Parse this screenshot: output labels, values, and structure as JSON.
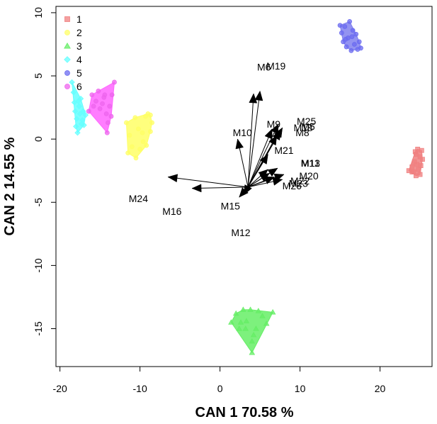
{
  "chart_data": {
    "type": "scatter",
    "xlabel": "CAN 1 70.58 %",
    "ylabel": "CAN 2 14.55 %",
    "xlim": [
      -20.5,
      26.5
    ],
    "ylim": [
      -18,
      10.5
    ],
    "x_ticks": [
      -20,
      -10,
      0,
      10,
      20
    ],
    "y_ticks": [
      10,
      5,
      0,
      -5,
      -10,
      -15
    ],
    "grid": false,
    "legend_position": "top-left",
    "groups": [
      {
        "name": "1",
        "color": "#f08080",
        "hull_color": "#f08080",
        "marker": "square",
        "points": [
          [
            23.6,
            -2.5
          ],
          [
            24.0,
            -2.2
          ],
          [
            24.3,
            -1.8
          ],
          [
            24.5,
            -1.2
          ],
          [
            24.7,
            -0.8
          ],
          [
            24.4,
            -1.0
          ],
          [
            24.2,
            -2.6
          ],
          [
            24.5,
            -2.9
          ],
          [
            24.8,
            -2.4
          ],
          [
            25.0,
            -1.4
          ],
          [
            25.2,
            -0.9
          ],
          [
            25.1,
            -2.1
          ],
          [
            24.6,
            -2.0
          ],
          [
            25.0,
            -2.8
          ],
          [
            24.0,
            -2.6
          ],
          [
            25.3,
            -1.6
          ]
        ]
      },
      {
        "name": "2",
        "color": "#ffff66",
        "hull_color": "#ffff66",
        "marker": "circle",
        "points": [
          [
            -11.7,
            1.3
          ],
          [
            -11.3,
            0.3
          ],
          [
            -11.5,
            -1.1
          ],
          [
            -11.0,
            -0.6
          ],
          [
            -10.6,
            1.7
          ],
          [
            -10.2,
            0.8
          ],
          [
            -10.0,
            -0.8
          ],
          [
            -9.7,
            0.5
          ],
          [
            -9.3,
            1.8
          ],
          [
            -9.0,
            2.0
          ],
          [
            -8.7,
            0.6
          ],
          [
            -8.5,
            1.3
          ],
          [
            -9.6,
            -0.2
          ],
          [
            -10.5,
            -1.5
          ],
          [
            -8.7,
            1.9
          ],
          [
            -9.2,
            -0.5
          ]
        ]
      },
      {
        "name": "3",
        "color": "#66ee66",
        "hull_color": "#66ee66",
        "marker": "triangle",
        "points": [
          [
            1.4,
            -14.5
          ],
          [
            2.0,
            -13.8
          ],
          [
            2.4,
            -15.0
          ],
          [
            2.9,
            -13.5
          ],
          [
            3.3,
            -14.4
          ],
          [
            3.8,
            -13.5
          ],
          [
            4.0,
            -16.0
          ],
          [
            4.2,
            -15.5
          ],
          [
            4.5,
            -15.0
          ],
          [
            4.8,
            -13.6
          ],
          [
            5.3,
            -14.0
          ],
          [
            5.8,
            -14.6
          ],
          [
            6.6,
            -13.7
          ],
          [
            3.2,
            -15.0
          ],
          [
            2.6,
            -14.5
          ],
          [
            4.0,
            -16.9
          ]
        ]
      },
      {
        "name": "4",
        "color": "#66ffff",
        "hull_color": "#66ffff",
        "marker": "diamond",
        "points": [
          [
            -18.5,
            4.5
          ],
          [
            -18.3,
            3.7
          ],
          [
            -18.1,
            2.2
          ],
          [
            -18.0,
            1.0
          ],
          [
            -17.9,
            1.6
          ],
          [
            -17.7,
            3.0
          ],
          [
            -17.6,
            2.6
          ],
          [
            -17.3,
            1.2
          ],
          [
            -17.5,
            2.0
          ],
          [
            -17.1,
            2.2
          ],
          [
            -17.2,
            1.5
          ],
          [
            -17.8,
            0.5
          ],
          [
            -17.0,
            1.1
          ],
          [
            -16.8,
            1.9
          ],
          [
            -17.4,
            3.2
          ],
          [
            -18.2,
            2.9
          ]
        ]
      },
      {
        "name": "5",
        "color": "#6b6bf0",
        "hull_color": "#8080ee",
        "marker": "circle",
        "points": [
          [
            15.0,
            9.0
          ],
          [
            15.2,
            8.4
          ],
          [
            15.4,
            7.7
          ],
          [
            15.6,
            8.9
          ],
          [
            15.8,
            7.3
          ],
          [
            16.0,
            8.0
          ],
          [
            16.2,
            9.3
          ],
          [
            16.4,
            7.0
          ],
          [
            16.6,
            8.6
          ],
          [
            16.8,
            7.5
          ],
          [
            17.0,
            8.3
          ],
          [
            17.2,
            7.1
          ],
          [
            17.4,
            7.7
          ],
          [
            17.6,
            7.2
          ],
          [
            16.5,
            8.1
          ],
          [
            15.7,
            7.9
          ]
        ]
      },
      {
        "name": "6",
        "color": "#ee66ee",
        "hull_color": "#ff66ff",
        "marker": "circle",
        "points": [
          [
            -16.4,
            2.2
          ],
          [
            -16.0,
            3.5
          ],
          [
            -15.8,
            2.6
          ],
          [
            -15.5,
            3.0
          ],
          [
            -15.0,
            2.4
          ],
          [
            -15.2,
            3.8
          ],
          [
            -14.7,
            2.8
          ],
          [
            -14.5,
            3.3
          ],
          [
            -14.2,
            2.0
          ],
          [
            -14.0,
            1.3
          ],
          [
            -14.4,
            3.5
          ],
          [
            -13.8,
            2.6
          ],
          [
            -13.6,
            1.8
          ],
          [
            -13.2,
            4.5
          ],
          [
            -13.5,
            3.5
          ],
          [
            -14.1,
            0.5
          ]
        ]
      }
    ],
    "loadings": {
      "origin": [
        3.5,
        -3.8
      ],
      "arrows": [
        {
          "label": "M6",
          "end": [
            4.2,
            3.6
          ],
          "label_pos": [
            5.5,
            5.7
          ]
        },
        {
          "label": "M19",
          "end": [
            5.0,
            3.8
          ],
          "label_pos": [
            7.0,
            5.8
          ]
        },
        {
          "label": "M9",
          "end": [
            6.5,
            0.8
          ],
          "label_pos": [
            6.7,
            1.2
          ]
        },
        {
          "label": "M25",
          "end": [
            7.3,
            1.2
          ],
          "label_pos": [
            10.8,
            1.4
          ]
        },
        {
          "label": "M18",
          "end": [
            7.6,
            0.7
          ],
          "label_pos": [
            10.4,
            0.9
          ]
        },
        {
          "label": "M5",
          "end": [
            7.8,
            0.9
          ],
          "label_pos": [
            11.0,
            1.0
          ]
        },
        {
          "label": "M8",
          "end": [
            7.1,
            0.3
          ],
          "label_pos": [
            10.3,
            0.5
          ]
        },
        {
          "label": "M10",
          "end": [
            2.2,
            0.0
          ],
          "label_pos": [
            2.8,
            0.5
          ]
        },
        {
          "label": "M21",
          "end": [
            6.0,
            -1.2
          ],
          "label_pos": [
            8.0,
            -0.9
          ]
        },
        {
          "label": "M13",
          "end": [
            6.0,
            -2.4
          ],
          "label_pos": [
            11.3,
            -1.9
          ]
        },
        {
          "label": "M11",
          "end": [
            6.2,
            -2.7
          ],
          "label_pos": [
            11.3,
            -1.9
          ]
        },
        {
          "label": "M20",
          "end": [
            7.2,
            -2.3
          ],
          "label_pos": [
            11.1,
            -2.9
          ]
        },
        {
          "label": "M22",
          "end": [
            8.0,
            -2.8
          ],
          "label_pos": [
            10.0,
            -3.3
          ]
        },
        {
          "label": "M23",
          "end": [
            7.8,
            -3.2
          ],
          "label_pos": [
            9.8,
            -3.5
          ]
        },
        {
          "label": "M26",
          "end": [
            6.8,
            -3.0
          ],
          "label_pos": [
            9.0,
            -3.7
          ]
        },
        {
          "label": "M24",
          "end": [
            -6.5,
            -3.0
          ],
          "label_pos": [
            -10.2,
            -4.7
          ]
        },
        {
          "label": "M16",
          "end": [
            -3.5,
            -3.9
          ],
          "label_pos": [
            -6.0,
            -5.7
          ]
        },
        {
          "label": "M15",
          "end": [
            2.4,
            -4.6
          ],
          "label_pos": [
            1.3,
            -5.3
          ]
        },
        {
          "label": "M12",
          "end": [
            3.0,
            -4.4
          ],
          "label_pos": [
            2.6,
            -7.4
          ]
        }
      ]
    }
  }
}
